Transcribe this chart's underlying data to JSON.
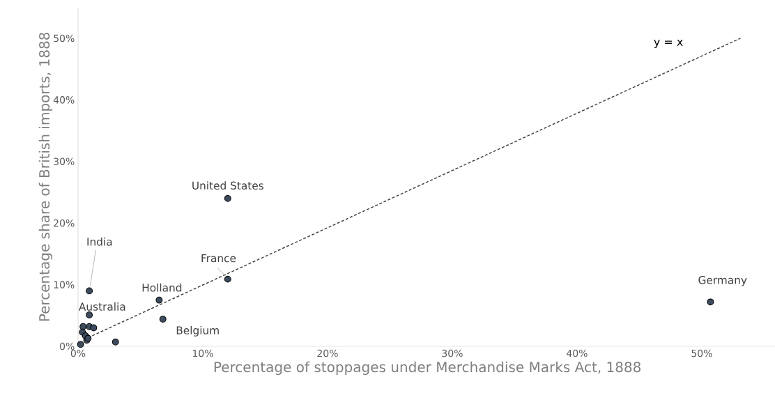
{
  "chart_data": {
    "type": "scatter",
    "xlabel": "Percentage of stoppages under Merchandise Marks Act, 1888",
    "ylabel": "Percentage  share of British imports, 1888",
    "xlim": [
      0,
      56
    ],
    "ylim": [
      0,
      55
    ],
    "xticks": [
      {
        "value": 0,
        "label": "0%"
      },
      {
        "value": 10,
        "label": "10%"
      },
      {
        "value": 20,
        "label": "20%"
      },
      {
        "value": 30,
        "label": "30%"
      },
      {
        "value": 40,
        "label": "40%"
      },
      {
        "value": 50,
        "label": "50%"
      }
    ],
    "yticks": [
      {
        "value": 0,
        "label": "0%"
      },
      {
        "value": 10,
        "label": "10%"
      },
      {
        "value": 20,
        "label": "20%"
      },
      {
        "value": 30,
        "label": "30%"
      },
      {
        "value": 40,
        "label": "40%"
      },
      {
        "value": 50,
        "label": "50%"
      }
    ],
    "grid": false,
    "series": [
      {
        "color": "#3d4b5e",
        "marker": "circle",
        "x": [
          50.7,
          12.0,
          12.0,
          6.5,
          6.8,
          0.9,
          0.9,
          3.0,
          0.2,
          0.7,
          0.4,
          0.9,
          1.25,
          0.35,
          0.6,
          0.8
        ],
        "values": [
          7.2,
          24.0,
          10.9,
          7.5,
          4.4,
          9.0,
          5.1,
          0.7,
          0.3,
          1.0,
          3.2,
          3.2,
          3.0,
          2.3,
          1.7,
          1.3
        ]
      },
      {
        "type": "line",
        "name": "y = x",
        "color": "#404040",
        "line_style": "dashed",
        "x": [
          0.8,
          53.1
        ],
        "values": [
          1.4,
          50.0
        ]
      }
    ],
    "annotations": [
      {
        "text": "United States",
        "x": 12.0,
        "y": 24.0
      },
      {
        "text": "India",
        "x": 0.9,
        "y": 9.0
      },
      {
        "text": "France",
        "x": 12.0,
        "y": 10.9
      },
      {
        "text": "Holland",
        "x": 6.5,
        "y": 7.5
      },
      {
        "text": "Australia",
        "x": 0.9,
        "y": 5.1
      },
      {
        "text": "Belgium",
        "x": 6.8,
        "y": 4.4
      },
      {
        "text": "Germany",
        "x": 50.7,
        "y": 7.2
      }
    ]
  }
}
